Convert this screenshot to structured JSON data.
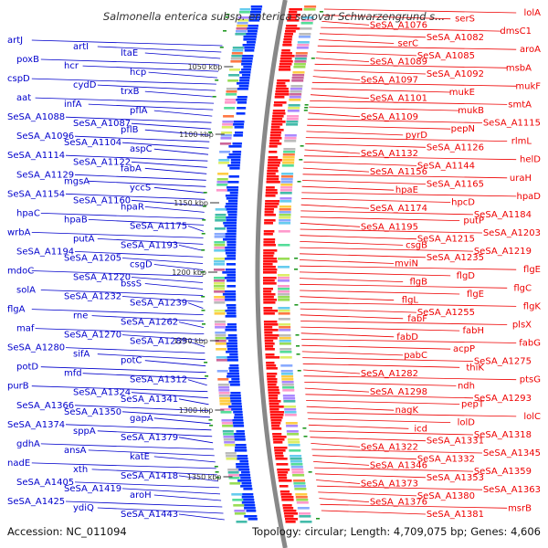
{
  "title": "Salmonella enterica subsp. enterica serovar Schwarzengrund s...",
  "footer": {
    "accession": "Accession: NC_011094",
    "summary": "Topology: circular; Length: 4,709,075 bp; Genes: 4,606"
  },
  "colors": {
    "forward": "#0000cc",
    "reverse": "#ee0000",
    "backbone": "#888888",
    "cds_forward": "#0033ff",
    "cds_reverse": "#ff1111"
  },
  "scale_labels": [
    "1050 kbp",
    "1100 kbp",
    "1150 kbp",
    "1200 kbp",
    "1250 kbp",
    "1300 kbp",
    "1350 kbp"
  ],
  "left_labels": [
    "artJ",
    "artI",
    "ltaE",
    "poxB",
    "hcr",
    "hcp",
    "cspD",
    "cydD",
    "trxB",
    "aat",
    "infA",
    "pflA",
    "SeSA_A1088",
    "SeSA_A1087",
    "pflB",
    "SeSA_A1096",
    "SeSA_A1104",
    "aspC",
    "SeSA_A1114",
    "SeSA_A1122",
    "fabA",
    "SeSA_A1129",
    "mgsA",
    "yccS",
    "SeSA_A1154",
    "SeSA_A1160",
    "hpaR",
    "hpaC",
    "hpaB",
    "SeSA_A1175",
    "wrbA",
    "putA",
    "SeSA_A1193",
    "SeSA_A1194",
    "SeSA_A1205",
    "csgD",
    "mdoC",
    "SeSA_A1220",
    "bssS",
    "solA",
    "SeSA_A1232",
    "SeSA_A1239",
    "flgA",
    "rne",
    "SeSA_A1262",
    "maf",
    "SeSA_A1270",
    "SeSA_A1289",
    "SeSA_A1280",
    "sifA",
    "potC",
    "potD",
    "mfd",
    "SeSA_A1312",
    "purB",
    "SeSA_A1324",
    "SeSA_A1341",
    "SeSA_A1366",
    "SeSA_A1350",
    "gapA",
    "SeSA_A1374",
    "sppA",
    "SeSA_A1379",
    "gdhA",
    "ansA",
    "katE",
    "nadE",
    "xth",
    "SeSA_A1418",
    "SeSA_A1405",
    "SeSA_A1419",
    "aroH",
    "SeSA_A1425",
    "ydiQ",
    "SeSA_A1443"
  ],
  "right_labels": [
    "lolA",
    "serS",
    "SeSA_A1076",
    "dmsC1",
    "SeSA_A1082",
    "serC",
    "aroA",
    "SeSA_A1085",
    "SeSA_A1089",
    "msbA",
    "SeSA_A1092",
    "SeSA_A1097",
    "mukF",
    "mukE",
    "SeSA_A1101",
    "smtA",
    "mukB",
    "SeSA_A1109",
    "SeSA_A1115",
    "pepN",
    "pyrD",
    "rlmL",
    "SeSA_A1126",
    "SeSA_A1132",
    "helD",
    "SeSA_A1144",
    "SeSA_A1156",
    "uraH",
    "SeSA_A1165",
    "hpaE",
    "hpaD",
    "hpcD",
    "SeSA_A1174",
    "SeSA_A1184",
    "putP",
    "SeSA_A1195",
    "SeSA_A1203",
    "SeSA_A1215",
    "csgB",
    "SeSA_A1219",
    "SeSA_A1235",
    "mviN",
    "flgE",
    "flgD",
    "flgB",
    "flgC",
    "flgE",
    "flgL",
    "flgK",
    "SeSA_A1255",
    "fabF",
    "plsX",
    "fabH",
    "fabD",
    "fabG",
    "acpP",
    "pabC",
    "SeSA_A1275",
    "thiK",
    "SeSA_A1282",
    "ptsG",
    "ndh",
    "SeSA_A1298",
    "SeSA_A1293",
    "pepT",
    "nagK",
    "lolC",
    "lolD",
    "icd",
    "SeSA_A1318",
    "SeSA_A1331",
    "SeSA_A1322",
    "SeSA_A1345",
    "SeSA_A1332",
    "SeSA_A1346",
    "SeSA_A1359",
    "SeSA_A1353",
    "SeSA_A1373",
    "SeSA_A1363",
    "SeSA_A1380",
    "SeSA_A1376",
    "msrB",
    "SeSA_A1381"
  ]
}
